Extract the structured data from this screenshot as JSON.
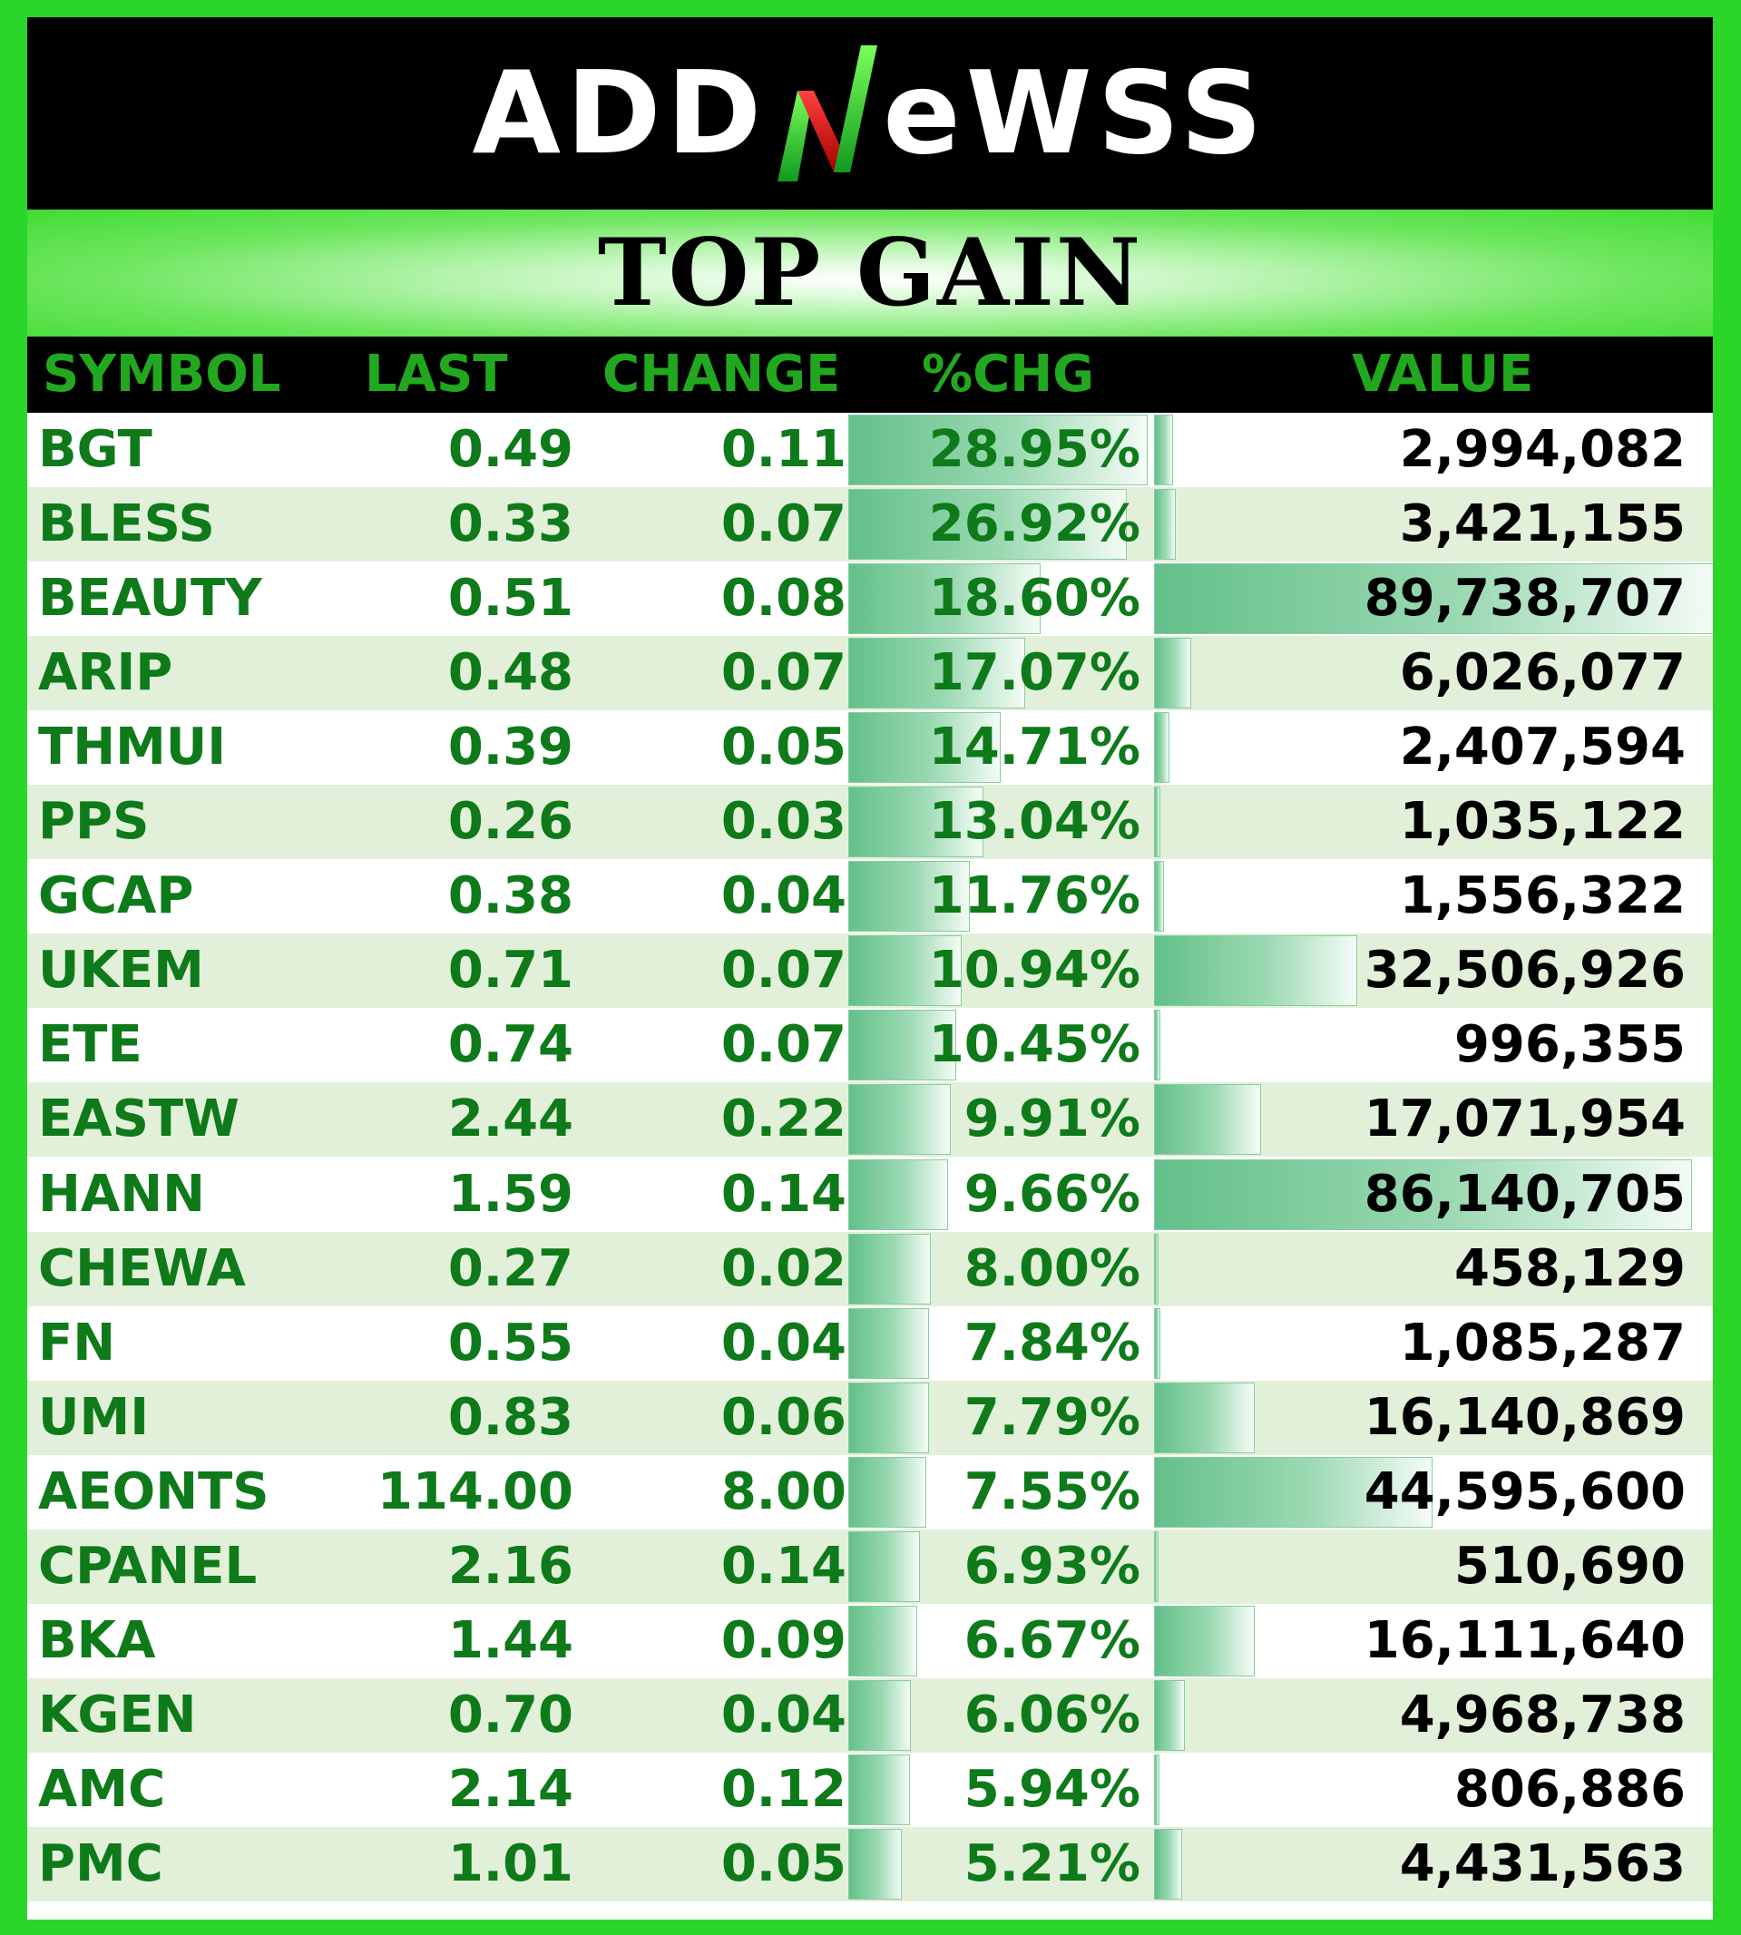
{
  "brand": {
    "logo_left": "ADD",
    "logo_right": "eWSS",
    "logo_text": "ADDNEWSS"
  },
  "banner": {
    "title": "TOP GAIN"
  },
  "table": {
    "columns": [
      "SYMBOL",
      "LAST",
      "CHANGE",
      "%CHG",
      "VALUE"
    ],
    "rows": [
      {
        "symbol": "BGT",
        "last": "0.49",
        "change": "0.11",
        "pct": "28.95%",
        "value": "2,994,082",
        "pct_num": 28.95,
        "value_num": 2994082
      },
      {
        "symbol": "BLESS",
        "last": "0.33",
        "change": "0.07",
        "pct": "26.92%",
        "value": "3,421,155",
        "pct_num": 26.92,
        "value_num": 3421155
      },
      {
        "symbol": "BEAUTY",
        "last": "0.51",
        "change": "0.08",
        "pct": "18.60%",
        "value": "89,738,707",
        "pct_num": 18.6,
        "value_num": 89738707
      },
      {
        "symbol": "ARIP",
        "last": "0.48",
        "change": "0.07",
        "pct": "17.07%",
        "value": "6,026,077",
        "pct_num": 17.07,
        "value_num": 6026077
      },
      {
        "symbol": "THMUI",
        "last": "0.39",
        "change": "0.05",
        "pct": "14.71%",
        "value": "2,407,594",
        "pct_num": 14.71,
        "value_num": 2407594
      },
      {
        "symbol": "PPS",
        "last": "0.26",
        "change": "0.03",
        "pct": "13.04%",
        "value": "1,035,122",
        "pct_num": 13.04,
        "value_num": 1035122
      },
      {
        "symbol": "GCAP",
        "last": "0.38",
        "change": "0.04",
        "pct": "11.76%",
        "value": "1,556,322",
        "pct_num": 11.76,
        "value_num": 1556322
      },
      {
        "symbol": "UKEM",
        "last": "0.71",
        "change": "0.07",
        "pct": "10.94%",
        "value": "32,506,926",
        "pct_num": 10.94,
        "value_num": 32506926
      },
      {
        "symbol": "ETE",
        "last": "0.74",
        "change": "0.07",
        "pct": "10.45%",
        "value": "996,355",
        "pct_num": 10.45,
        "value_num": 996355
      },
      {
        "symbol": "EASTW",
        "last": "2.44",
        "change": "0.22",
        "pct": "9.91%",
        "value": "17,071,954",
        "pct_num": 9.91,
        "value_num": 17071954
      },
      {
        "symbol": "HANN",
        "last": "1.59",
        "change": "0.14",
        "pct": "9.66%",
        "value": "86,140,705",
        "pct_num": 9.66,
        "value_num": 86140705
      },
      {
        "symbol": "CHEWA",
        "last": "0.27",
        "change": "0.02",
        "pct": "8.00%",
        "value": "458,129",
        "pct_num": 8.0,
        "value_num": 458129
      },
      {
        "symbol": "FN",
        "last": "0.55",
        "change": "0.04",
        "pct": "7.84%",
        "value": "1,085,287",
        "pct_num": 7.84,
        "value_num": 1085287
      },
      {
        "symbol": "UMI",
        "last": "0.83",
        "change": "0.06",
        "pct": "7.79%",
        "value": "16,140,869",
        "pct_num": 7.79,
        "value_num": 16140869
      },
      {
        "symbol": "AEONTS",
        "last": "114.00",
        "change": "8.00",
        "pct": "7.55%",
        "value": "44,595,600",
        "pct_num": 7.55,
        "value_num": 44595600
      },
      {
        "symbol": "CPANEL",
        "last": "2.16",
        "change": "0.14",
        "pct": "6.93%",
        "value": "510,690",
        "pct_num": 6.93,
        "value_num": 510690
      },
      {
        "symbol": "BKA",
        "last": "1.44",
        "change": "0.09",
        "pct": "6.67%",
        "value": "16,111,640",
        "pct_num": 6.67,
        "value_num": 16111640
      },
      {
        "symbol": "KGEN",
        "last": "0.70",
        "change": "0.04",
        "pct": "6.06%",
        "value": "4,968,738",
        "pct_num": 6.06,
        "value_num": 4968738
      },
      {
        "symbol": "AMC",
        "last": "2.14",
        "change": "0.12",
        "pct": "5.94%",
        "value": "806,886",
        "pct_num": 5.94,
        "value_num": 806886
      },
      {
        "symbol": "PMC",
        "last": "1.01",
        "change": "0.05",
        "pct": "5.21%",
        "value": "4,431,563",
        "pct_num": 5.21,
        "value_num": 4431563
      }
    ]
  },
  "colors": {
    "border": "#2bd62b",
    "text_green": "#0e7a1a",
    "header_green": "#22a81f",
    "alt_row": "#e2f0d9",
    "bar": "#63c08a"
  }
}
